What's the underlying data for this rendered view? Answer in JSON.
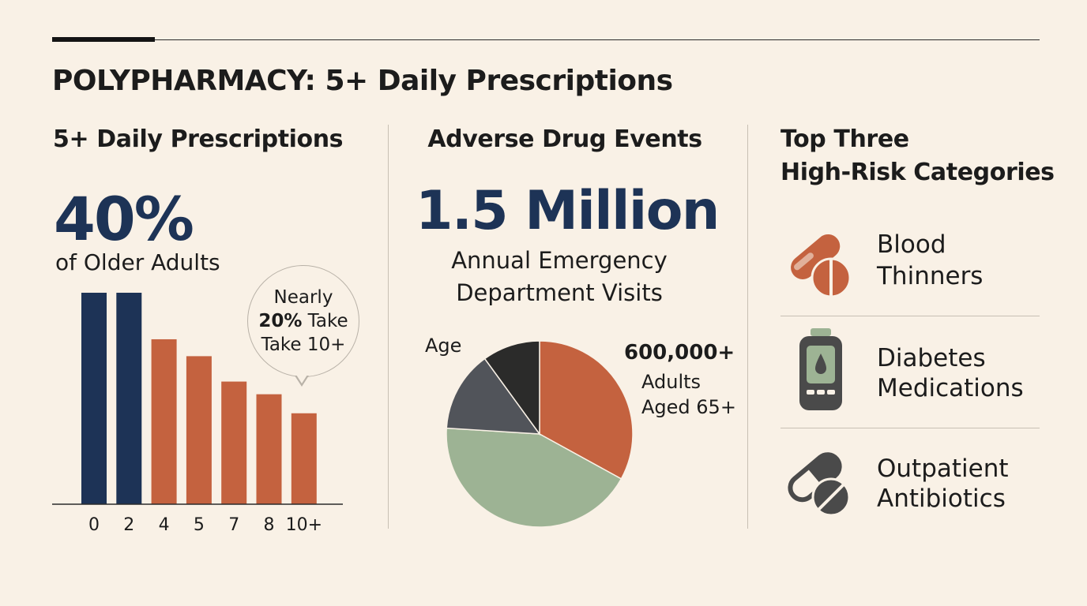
{
  "header": {
    "title": "POLYPHARMACY: 5+ Daily Prescriptions"
  },
  "section1": {
    "title": "5+ Daily Prescriptions",
    "big_stat": "40%",
    "big_stat_caption": "of Older Adults",
    "bubble": {
      "line1": "Nearly",
      "line2_bold": "20%",
      "line2_rest": " Take",
      "line3": "Take 10+"
    }
  },
  "section2": {
    "title": "Adverse Drug Events",
    "big_stat": "1.5 Million",
    "caption_line1": "Annual Emergency",
    "caption_line2": "Department Visits",
    "pie_label": "Age",
    "callout_number": "600,000+",
    "callout_line1": "Adults",
    "callout_line2": "Aged 65+"
  },
  "section3": {
    "title_line1": "Top Three",
    "title_line2": "High-Risk Categories",
    "categories": [
      {
        "label_line1": "Blood",
        "label_line2": "Thinners",
        "icon": "capsule-tablet-icon"
      },
      {
        "label_line1": "Diabetes",
        "label_line2": "Medications",
        "icon": "glucose-meter-icon"
      },
      {
        "label_line1": "Outpatient",
        "label_line2": "Antibiotics",
        "icon": "pill-icon"
      }
    ]
  },
  "colors": {
    "navy": "#1d3356",
    "rust": "#c4623f",
    "sage": "#9db394",
    "slate": "#51545a",
    "charcoal": "#2b2b2a",
    "icon_gray": "#4a4a4a"
  },
  "chart_data": [
    {
      "type": "bar",
      "categories": [
        "0",
        "2",
        "4",
        "5",
        "7",
        "8",
        "10+"
      ],
      "values": [
        100,
        100,
        78,
        70,
        58,
        52,
        43
      ],
      "bar_colors": [
        "#1d3356",
        "#1d3356",
        "#c4623f",
        "#c4623f",
        "#c4623f",
        "#c4623f",
        "#c4623f"
      ],
      "ylim": [
        0,
        100
      ],
      "title": "",
      "xlabel": "",
      "ylabel": ""
    },
    {
      "type": "pie",
      "categories": [
        "",
        "",
        "",
        ""
      ],
      "values": [
        33,
        43,
        14,
        10
      ],
      "slice_colors": [
        "#c4623f",
        "#9db394",
        "#51545a",
        "#2b2b2a"
      ],
      "start_angle_deg": 0
    }
  ]
}
